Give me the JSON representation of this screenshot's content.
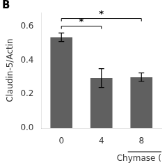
{
  "chart_data": {
    "type": "bar",
    "panel_label": "B",
    "ylabel": "Claudin-5/Actin",
    "xlabel": "Chymase (",
    "categories": [
      "0",
      "4",
      "8"
    ],
    "values": [
      0.535,
      0.295,
      0.3
    ],
    "errors": [
      0.025,
      0.055,
      0.025
    ],
    "color": "#606060",
    "ylim": [
      0.0,
      0.68
    ],
    "yticks": [
      {
        "value": 0.0,
        "label": "0.0"
      },
      0.2,
      0.4,
      0.6
    ],
    "sig_bars": [
      {
        "from": "0",
        "to": "4",
        "y": 0.6,
        "label": "*"
      },
      {
        "from": "0",
        "to": "8",
        "y": 0.645,
        "label": "*"
      }
    ],
    "grid": false
  }
}
